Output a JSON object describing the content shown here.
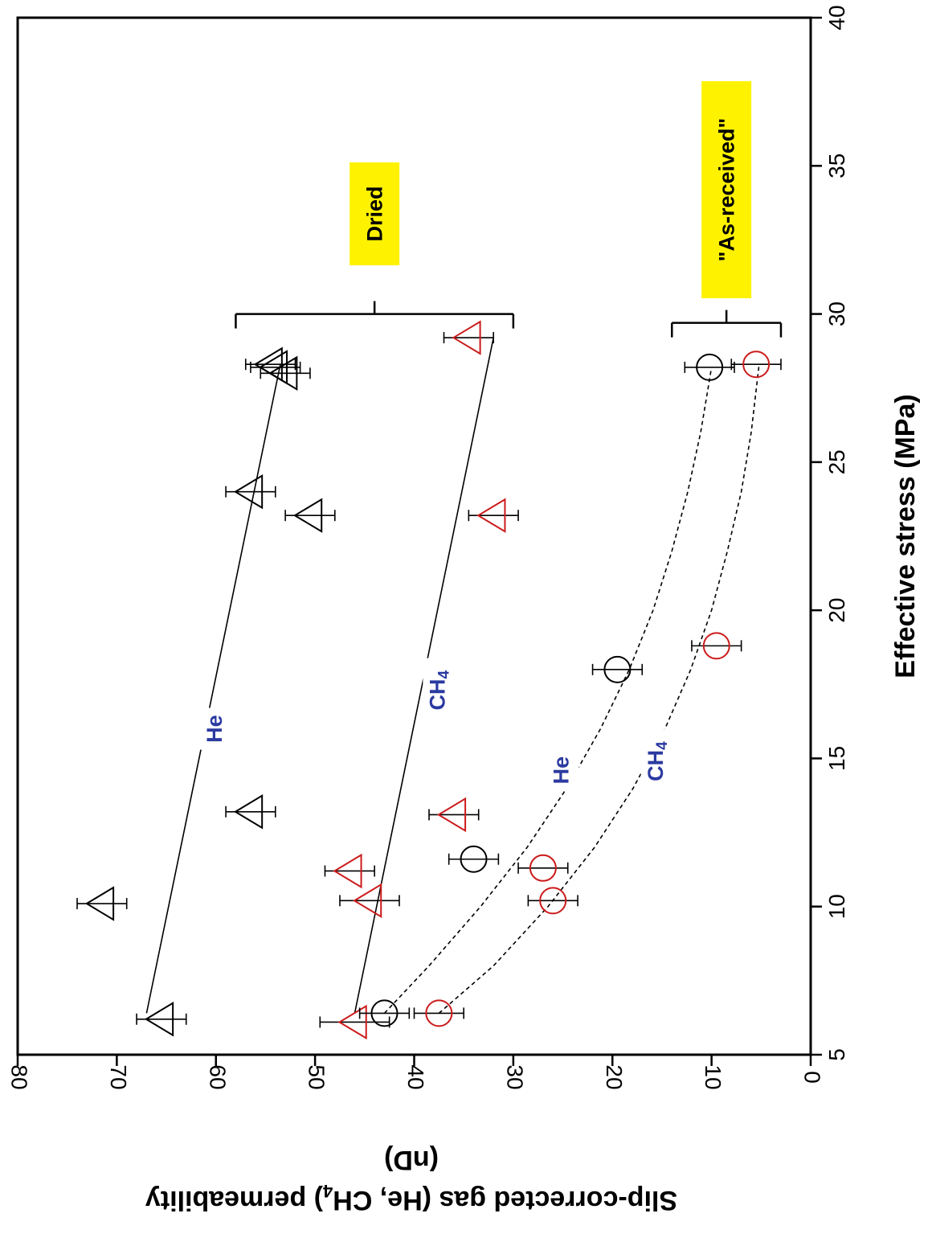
{
  "chart_data": {
    "type": "scatter",
    "orientation": "rotated 90 degrees clockwise",
    "xlabel": "Effective stress (MPa)",
    "ylabel_line1": "Slip-corrected gas (He, CH",
    "ylabel_sub": "4",
    "ylabel_line1_end": ") permeability",
    "ylabel_line2": "(nD)",
    "xlim": [
      5,
      40
    ],
    "ylim": [
      0,
      80
    ],
    "xticks": [
      "5",
      "10",
      "15",
      "20",
      "25",
      "30",
      "35",
      "40"
    ],
    "yticks": [
      "0",
      "10",
      "20",
      "30",
      "40",
      "50",
      "60",
      "70",
      "80"
    ],
    "grid": false,
    "colors": {
      "he": "#000000",
      "ch4": "#cc1b1b",
      "label": "#2b3aa0",
      "highlight": "#fff200"
    },
    "series": [
      {
        "group": "Dried",
        "gas": "He",
        "marker": "triangle",
        "points": [
          {
            "x": 6.2,
            "y": 65.5,
            "err": 2.5
          },
          {
            "x": 10.1,
            "y": 71.5,
            "err": 2.5
          },
          {
            "x": 13.2,
            "y": 56.5,
            "err": 2.5
          },
          {
            "x": 23.2,
            "y": 50.5,
            "err": 2.5
          },
          {
            "x": 24.0,
            "y": 56.5,
            "err": 2.5
          },
          {
            "x": 28.0,
            "y": 53.0,
            "err": 2.5
          },
          {
            "x": 28.2,
            "y": 54.0,
            "err": 2.5
          },
          {
            "x": 28.3,
            "y": 54.5,
            "err": 2.5
          }
        ],
        "fit": {
          "style": "solid",
          "x": [
            6.4,
            28.3
          ],
          "y": [
            67.0,
            53.5
          ]
        }
      },
      {
        "group": "Dried",
        "gas": "CH4",
        "marker": "triangle",
        "points": [
          {
            "x": 6.1,
            "y": 46.0,
            "err": 3.5
          },
          {
            "x": 10.2,
            "y": 44.5,
            "err": 3.0
          },
          {
            "x": 11.2,
            "y": 46.5,
            "err": 2.5
          },
          {
            "x": 13.1,
            "y": 36.0,
            "err": 2.5
          },
          {
            "x": 23.2,
            "y": 32.0,
            "err": 2.5
          },
          {
            "x": 29.2,
            "y": 34.5,
            "err": 2.5
          }
        ],
        "fit": {
          "style": "solid",
          "x": [
            6.4,
            29.2
          ],
          "y": [
            46.0,
            32.0
          ]
        }
      },
      {
        "group": "As-received",
        "gas": "He",
        "marker": "circle",
        "points": [
          {
            "x": 6.4,
            "y": 43.0,
            "err": 2.5
          },
          {
            "x": 11.6,
            "y": 34.0,
            "err": 2.5
          },
          {
            "x": 18.0,
            "y": 19.5,
            "err": 2.5
          },
          {
            "x": 28.2,
            "y": 10.2,
            "err": 2.5
          }
        ],
        "fit": {
          "style": "dashed",
          "x": [
            6.4,
            8,
            10,
            12,
            14,
            16,
            18,
            20,
            22,
            24,
            26,
            28.2
          ],
          "y": [
            43.0,
            38.5,
            33.3,
            28.6,
            24.6,
            21.2,
            18.3,
            15.9,
            14.0,
            12.4,
            11.1,
            10.0
          ]
        }
      },
      {
        "group": "As-received",
        "gas": "CH4",
        "marker": "circle",
        "points": [
          {
            "x": 6.4,
            "y": 37.5,
            "err": 2.5
          },
          {
            "x": 10.2,
            "y": 26.0,
            "err": 2.5
          },
          {
            "x": 11.3,
            "y": 27.0,
            "err": 2.5
          },
          {
            "x": 18.8,
            "y": 9.5,
            "err": 2.5
          },
          {
            "x": 28.3,
            "y": 5.5,
            "err": 2.5
          }
        ],
        "fit": {
          "style": "dashed",
          "x": [
            6.4,
            8,
            10,
            12,
            14,
            16,
            18,
            20,
            22,
            24,
            26,
            28.3
          ],
          "y": [
            37.5,
            32.0,
            26.5,
            21.8,
            17.9,
            14.7,
            12.1,
            10.0,
            8.4,
            7.0,
            6.0,
            5.2
          ]
        }
      }
    ],
    "brackets": [
      {
        "name": "dried-bracket",
        "label": "Dried",
        "x": 30.0,
        "y_from": 30.0,
        "y_to": 58.0
      },
      {
        "name": "as-received-bracket",
        "label": "\"As-received\"",
        "x": 29.7,
        "y_from": 3.0,
        "y_to": 14.0
      }
    ],
    "annotations": [
      {
        "name": "he-dried-label",
        "text": "He",
        "x": 16.0,
        "y": 60.0
      },
      {
        "name": "ch4-dried-label",
        "text": "CH",
        "sub": "4",
        "x": 17.3,
        "y": 37.5
      },
      {
        "name": "he-as-received-label",
        "text": "He",
        "x": 14.6,
        "y": 25.0
      },
      {
        "name": "ch4-as-received-label",
        "text": "CH",
        "sub": "4",
        "x": 14.9,
        "y": 15.5
      }
    ]
  }
}
